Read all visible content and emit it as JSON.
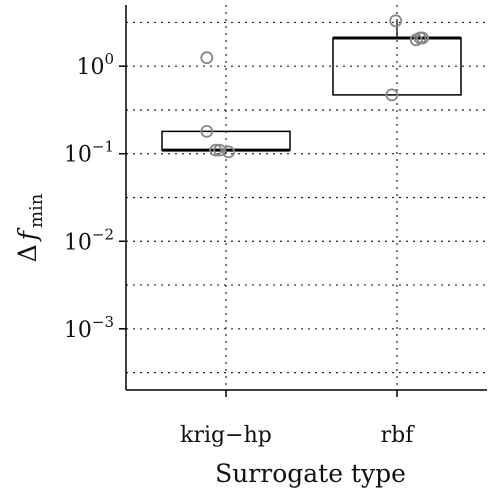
{
  "chart_data": {
    "type": "boxplot",
    "xlabel": "Surrogate type",
    "ylabel_base": "Δ",
    "ylabel_var": "f",
    "ylabel_sub": "min",
    "yscale": "log",
    "ylim": [
      0.0002,
      5
    ],
    "yticks": [
      {
        "value": 1,
        "base": "10",
        "exp": "0"
      },
      {
        "value": 0.1,
        "base": "10",
        "exp": "−1"
      },
      {
        "value": 0.01,
        "base": "10",
        "exp": "−2"
      },
      {
        "value": 0.001,
        "base": "10",
        "exp": "−3"
      }
    ],
    "minor_gridlines": [
      3.16,
      0.316,
      0.0316,
      0.00316,
      0.000316
    ],
    "grid": true,
    "categories": [
      "krig−hp",
      "rbf"
    ],
    "boxes": [
      {
        "q1": 0.11,
        "median": 0.11,
        "q3": 0.18,
        "whisker_low": 0.11,
        "whisker_high": 0.18
      },
      {
        "q1": 0.47,
        "median": 2.1,
        "q3": 2.1,
        "whisker_low": 0.47,
        "whisker_high": 3.3
      }
    ],
    "points": [
      [
        {
          "y": 1.25,
          "jitter": -0.15
        },
        {
          "y": 0.18,
          "jitter": -0.15
        },
        {
          "y": 0.11,
          "jitter": -0.08
        },
        {
          "y": 0.11,
          "jitter": -0.05
        },
        {
          "y": 0.105,
          "jitter": 0.02
        }
      ],
      [
        {
          "y": 3.3,
          "jitter": -0.01
        },
        {
          "y": 0.47,
          "jitter": -0.04
        },
        {
          "y": 2.0,
          "jitter": 0.15
        },
        {
          "y": 2.1,
          "jitter": 0.18
        },
        {
          "y": 2.1,
          "jitter": 0.2
        }
      ]
    ],
    "colors": {
      "box": "#000000",
      "point": "#888888"
    }
  }
}
